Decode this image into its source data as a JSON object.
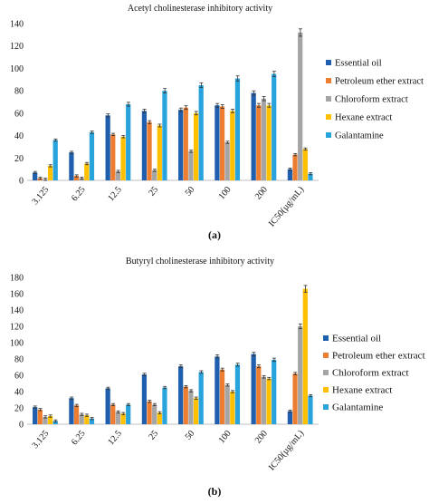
{
  "figure": {
    "panels": [
      {
        "caption": "(a)"
      },
      {
        "caption": "(b)"
      }
    ]
  },
  "chart_data": [
    {
      "type": "bar",
      "title": "Acetyl cholinesterase inhibitory activity",
      "xlabel": "",
      "ylabel": "",
      "categories": [
        "3.125",
        "6.25",
        "12.5",
        "25",
        "50",
        "100",
        "200",
        "IC50(µg/mL)"
      ],
      "ylim": [
        0,
        140
      ],
      "yticks": [
        0,
        20,
        40,
        60,
        80,
        100,
        120,
        140
      ],
      "grid": false,
      "legend_position": "right",
      "error_bars": true,
      "series": [
        {
          "name": "Essential oil",
          "color": "#1f5fad",
          "values": [
            7,
            25,
            58,
            62,
            63,
            67,
            78,
            10
          ]
        },
        {
          "name": "Petroleum ether extract",
          "color": "#ed7d31",
          "values": [
            2,
            4,
            41,
            52,
            65,
            66,
            67,
            23
          ]
        },
        {
          "name": "Chloroform extract",
          "color": "#a5a5a5",
          "values": [
            1,
            2,
            8,
            9,
            26,
            34,
            73,
            132
          ]
        },
        {
          "name": "Hexane extract",
          "color": "#ffc000",
          "values": [
            13,
            15,
            39,
            49,
            60,
            62,
            67,
            28
          ]
        },
        {
          "name": "Galantamine",
          "color": "#29a3dc",
          "values": [
            36,
            43,
            68,
            80,
            85,
            91,
            95,
            6
          ]
        }
      ]
    },
    {
      "type": "bar",
      "title": "Butyryl cholinesterase inhibitory activity",
      "xlabel": "",
      "ylabel": "",
      "categories": [
        "3.125",
        "6.25",
        "12.5",
        "25",
        "50",
        "100",
        "200",
        "IC50(µg/mL)"
      ],
      "ylim": [
        0,
        180
      ],
      "yticks": [
        0,
        20,
        40,
        60,
        80,
        100,
        120,
        140,
        160,
        180
      ],
      "grid": false,
      "legend_position": "right",
      "error_bars": true,
      "series": [
        {
          "name": "Essential oil",
          "color": "#1f5fad",
          "values": [
            21,
            32,
            44,
            61,
            71,
            83,
            86,
            16
          ]
        },
        {
          "name": "Petroleum ether extract",
          "color": "#ed7d31",
          "values": [
            18,
            23,
            24,
            28,
            46,
            67,
            71,
            62
          ]
        },
        {
          "name": "Chloroform extract",
          "color": "#a5a5a5",
          "values": [
            9,
            12,
            15,
            24,
            41,
            48,
            58,
            120
          ]
        },
        {
          "name": "Hexane extract",
          "color": "#ffc000",
          "values": [
            10,
            11,
            13,
            14,
            32,
            40,
            56,
            166
          ]
        },
        {
          "name": "Galantamine",
          "color": "#29a3dc",
          "values": [
            4,
            7,
            24,
            45,
            64,
            73,
            79,
            35
          ]
        }
      ]
    }
  ]
}
